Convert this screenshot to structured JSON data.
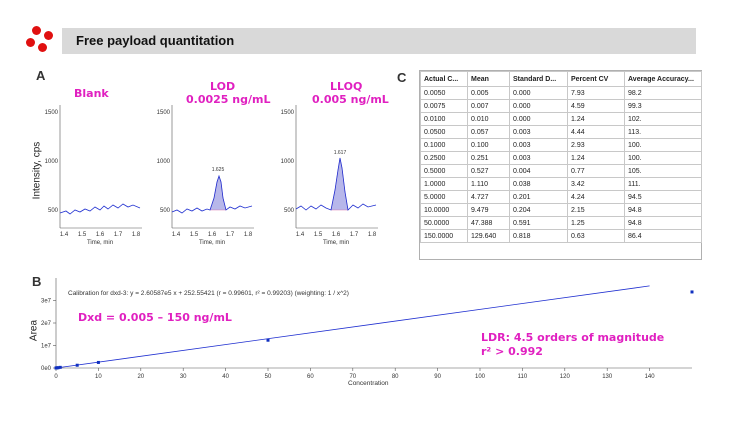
{
  "header": {
    "title": "Free payload quantitation"
  },
  "colors": {
    "accent": "#e020c0",
    "trace": "#1f2fd0",
    "dot": "#e01010",
    "header_bg": "#d9d9d9"
  },
  "panel_a": {
    "letter": "A",
    "ylabel": "Intensity, cps",
    "plots": [
      {
        "label1": "Blank",
        "label2": "",
        "peak": "",
        "yticks": [
          "1500",
          "1000",
          "500"
        ],
        "xticks": [
          "1.4",
          "1.5",
          "1.6",
          "1.7",
          "1.8"
        ],
        "xlabel": "Time, min"
      },
      {
        "label1": "LOD",
        "label2": "0.0025 ng/mL",
        "peak": "1.625",
        "yticks": [
          "1500",
          "1000",
          "500"
        ],
        "xticks": [
          "1.4",
          "1.5",
          "1.6",
          "1.7",
          "1.8"
        ],
        "xlabel": "Time, min"
      },
      {
        "label1": "LLOQ",
        "label2": "0.005 ng/mL",
        "peak": "1.617",
        "yticks": [
          "1500",
          "1000",
          "500"
        ],
        "xticks": [
          "1.4",
          "1.5",
          "1.6",
          "1.7",
          "1.8"
        ],
        "xlabel": "Time, min"
      }
    ]
  },
  "panel_c": {
    "letter": "C",
    "columns": [
      "Actual C...",
      "Mean",
      "Standard D...",
      "Percent CV",
      "Average Accuracy..."
    ],
    "rows": [
      [
        "0.0050",
        "0.005",
        "0.000",
        "7.93",
        "98.2"
      ],
      [
        "0.0075",
        "0.007",
        "0.000",
        "4.59",
        "99.3"
      ],
      [
        "0.0100",
        "0.010",
        "0.000",
        "1.24",
        "102."
      ],
      [
        "0.0500",
        "0.057",
        "0.003",
        "4.44",
        "113."
      ],
      [
        "0.1000",
        "0.100",
        "0.003",
        "2.93",
        "100."
      ],
      [
        "0.2500",
        "0.251",
        "0.003",
        "1.24",
        "100."
      ],
      [
        "0.5000",
        "0.527",
        "0.004",
        "0.77",
        "105."
      ],
      [
        "1.0000",
        "1.110",
        "0.038",
        "3.42",
        "111."
      ],
      [
        "5.0000",
        "4.727",
        "0.201",
        "4.24",
        "94.5"
      ],
      [
        "10.0000",
        "9.479",
        "0.204",
        "2.15",
        "94.8"
      ],
      [
        "50.0000",
        "47.388",
        "0.591",
        "1.25",
        "94.8"
      ],
      [
        "150.0000",
        "129.640",
        "0.818",
        "0.63",
        "86.4"
      ]
    ]
  },
  "panel_b": {
    "letter": "B",
    "ylabel": "Area",
    "calibration": "Calibration for dxd-3: y = 2.60587e5 x + 252.55421 (r = 0.99601, r² = 0.99203)  (weighting: 1 / x^2)",
    "range_label": "Dxd = 0.005 – 150 ng/mL",
    "ldr_label": "LDR: 4.5 orders of magnitude",
    "r2_label": "r² > 0.992",
    "xlabel": "Concentration"
  },
  "chart_data": {
    "type": "scatter",
    "xlabel": "Concentration",
    "ylabel": "Area",
    "xlim": [
      0,
      150
    ],
    "ylim": [
      0,
      40000000
    ],
    "xticks": [
      0,
      10,
      20,
      30,
      40,
      50,
      60,
      70,
      80,
      90,
      100,
      110,
      120,
      130,
      140
    ],
    "yticks": [
      {
        "v": 0,
        "label": "0e0"
      },
      {
        "v": 10000000,
        "label": "1e7"
      },
      {
        "v": 20000000,
        "label": "2e7"
      },
      {
        "v": 30000000,
        "label": "3e7"
      }
    ],
    "series": [
      {
        "values_x": [
          0.005,
          0.0075,
          0.01,
          0.05,
          0.1,
          0.25,
          0.5,
          1,
          5,
          10,
          50,
          150
        ],
        "values_y": [
          1500,
          2000,
          2800,
          15000,
          26000,
          65000,
          137000,
          289000,
          1230000,
          2470000,
          12350000,
          33800000
        ]
      }
    ],
    "fit": {
      "slope": 260587,
      "intercept": 252.55421,
      "x_end": 140
    }
  }
}
